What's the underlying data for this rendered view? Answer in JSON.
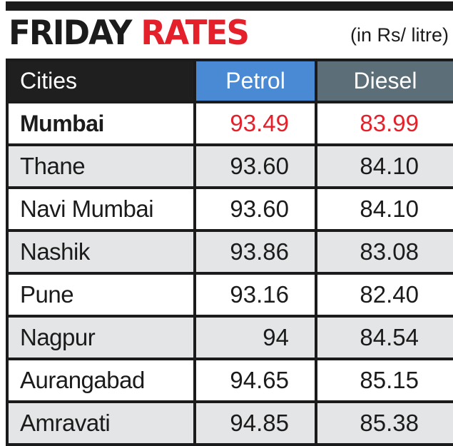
{
  "chart_data": {
    "type": "table",
    "title_parts": [
      "FRIDAY",
      "RATES"
    ],
    "unit": "(in Rs/ litre)",
    "columns": [
      "Cities",
      "Petrol",
      "Diesel"
    ],
    "rows": [
      {
        "city": "Mumbai",
        "petrol": "93.49",
        "diesel": "83.99"
      },
      {
        "city": "Thane",
        "petrol": "93.60",
        "diesel": "84.10"
      },
      {
        "city": "Navi Mumbai",
        "petrol": "93.60",
        "diesel": "84.10"
      },
      {
        "city": "Nashik",
        "petrol": "93.86",
        "diesel": "83.08"
      },
      {
        "city": "Pune",
        "petrol": "93.16",
        "diesel": "82.40"
      },
      {
        "city": "Nagpur",
        "petrol": "94",
        "diesel": "84.54"
      },
      {
        "city": "Aurangabad",
        "petrol": "94.65",
        "diesel": "85.15"
      },
      {
        "city": "Amravati",
        "petrol": "94.85",
        "diesel": "85.38"
      }
    ],
    "highlight_row": 0
  },
  "colors": {
    "title_accent": "#e4202a",
    "petrol_header": "#4a8ad4",
    "diesel_header": "#5c6f79",
    "cities_header": "#1f1f1f",
    "stripe": "#e4e5e6"
  }
}
